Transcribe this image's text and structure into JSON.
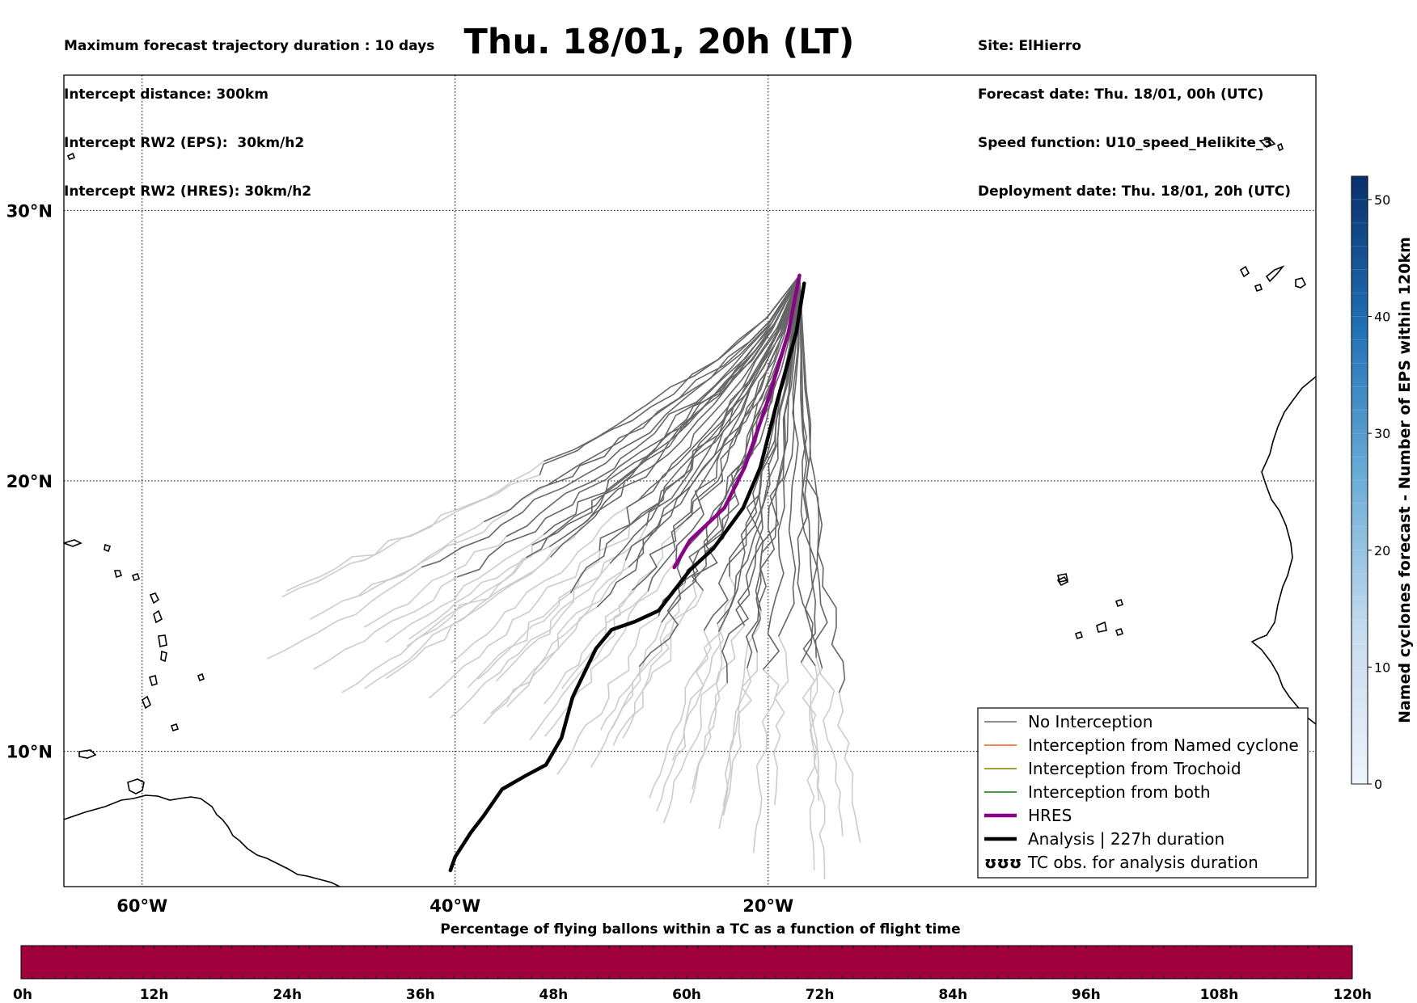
{
  "header": {
    "title": "Thu. 18/01, 20h (LT)",
    "left_lines": [
      "Maximum forecast trajectory duration : 10 days",
      "Intercept distance: 300km",
      "Intercept RW2 (EPS):  30km/h2",
      "Intercept RW2 (HRES): 30km/h2"
    ],
    "right_lines": [
      "Site: ElHierro",
      "Forecast date: Thu. 18/01, 00h (UTC)",
      "Speed function: U10_speed_Helikite_3",
      "Deployment date: Thu. 18/01, 20h (UTC)"
    ]
  },
  "map": {
    "lon_range": [
      -65,
      15
    ],
    "lat_range": [
      5,
      35
    ],
    "lon_ticks": [
      {
        "value": -60,
        "label": "60°W"
      },
      {
        "value": -40,
        "label": "40°W"
      },
      {
        "value": -20,
        "label": "20°W"
      }
    ],
    "lat_ticks": [
      {
        "value": 30,
        "label": "30°N"
      },
      {
        "value": 20,
        "label": "20°N"
      },
      {
        "value": 10,
        "label": "10°N"
      }
    ],
    "grid": true,
    "launch_site": {
      "name": "ElHierro",
      "lon": -18.0,
      "lat": 27.6
    },
    "colors": {
      "no_interception": "#666666",
      "late_trajectory": "#cccccc",
      "named_cyclone": "#ff5a1f",
      "trochoid": "#808000",
      "both": "#008000",
      "hres": "#8b008b",
      "analysis": "#000000",
      "cyclone_bar": "#a0003c"
    }
  },
  "legend": {
    "placement": "lower-right",
    "items": [
      {
        "label": "No Interception",
        "kind": "line",
        "color": "#666666"
      },
      {
        "label": "Interception from Named cyclone",
        "kind": "line",
        "color": "#ff5a1f"
      },
      {
        "label": "Interception from Trochoid",
        "kind": "line",
        "color": "#808000"
      },
      {
        "label": "Interception from both",
        "kind": "line",
        "color": "#008000"
      },
      {
        "label": "HRES",
        "kind": "thick",
        "color": "#8b008b"
      },
      {
        "label": "Analysis | 227h duration",
        "kind": "thick",
        "color": "#000000"
      },
      {
        "label": "TC obs. for analysis duration",
        "kind": "symbol",
        "symbol": "ʊʊʊ"
      }
    ]
  },
  "colorbar": {
    "label": "Named cyclones forecast - Number of EPS within 120km",
    "range": [
      0,
      52
    ],
    "ticks": [
      0,
      10,
      20,
      30,
      40,
      50
    ],
    "colors": [
      "#eef4fb",
      "#08306b"
    ]
  },
  "timebar": {
    "title": "Percentage of flying ballons within a TC as a function of flight time",
    "ticks": [
      "0h",
      "12h",
      "24h",
      "36h",
      "48h",
      "60h",
      "72h",
      "84h",
      "96h",
      "108h",
      "120h"
    ],
    "color": "#a0003c"
  },
  "chart_data": {
    "type": "line",
    "title": "Thu. 18/01, 20h (LT)",
    "xlabel": "",
    "ylabel": "",
    "xlim": [
      -65,
      15
    ],
    "ylim": [
      5,
      35
    ],
    "series": [
      {
        "name": "HRES",
        "points": [
          [
            -18.0,
            27.6
          ],
          [
            -18.7,
            25.5
          ],
          [
            -20.0,
            23.0
          ],
          [
            -21.5,
            20.5
          ],
          [
            -22.8,
            19.0
          ],
          [
            -25.0,
            17.8
          ],
          [
            -26.0,
            16.8
          ]
        ]
      },
      {
        "name": "Analysis | 227h duration",
        "points": [
          [
            -17.7,
            27.3
          ],
          [
            -18.2,
            25.5
          ],
          [
            -19.4,
            23.0
          ],
          [
            -20.5,
            20.5
          ],
          [
            -21.6,
            19.0
          ],
          [
            -23.5,
            17.5
          ],
          [
            -25.0,
            16.7
          ],
          [
            -27.0,
            15.2
          ],
          [
            -28.5,
            14.8
          ],
          [
            -30.0,
            14.5
          ],
          [
            -31.0,
            13.8
          ],
          [
            -32.5,
            12.0
          ],
          [
            -33.2,
            10.5
          ],
          [
            -34.2,
            9.5
          ],
          [
            -35.5,
            9.1
          ],
          [
            -37.0,
            8.6
          ],
          [
            -38.2,
            7.6
          ],
          [
            -39.0,
            7.0
          ],
          [
            -40.0,
            6.1
          ],
          [
            -40.3,
            5.6
          ]
        ]
      }
    ]
  }
}
